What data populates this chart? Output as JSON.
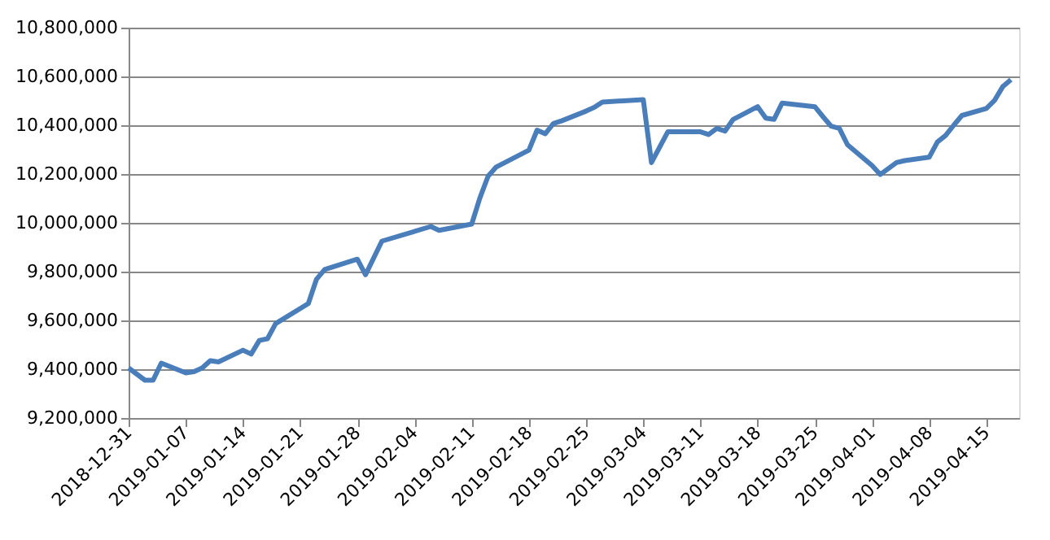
{
  "chart_data": {
    "type": "line",
    "x": [
      "2018-12-31",
      "2019-01-02",
      "2019-01-03",
      "2019-01-04",
      "2019-01-07",
      "2019-01-08",
      "2019-01-09",
      "2019-01-10",
      "2019-01-11",
      "2019-01-14",
      "2019-01-15",
      "2019-01-16",
      "2019-01-17",
      "2019-01-18",
      "2019-01-22",
      "2019-01-23",
      "2019-01-24",
      "2019-01-28",
      "2019-01-29",
      "2019-01-31",
      "2019-02-06",
      "2019-02-07",
      "2019-02-11",
      "2019-02-12",
      "2019-02-13",
      "2019-02-14",
      "2019-02-18",
      "2019-02-19",
      "2019-02-20",
      "2019-02-21",
      "2019-02-22",
      "2019-02-25",
      "2019-02-26",
      "2019-02-27",
      "2019-03-04",
      "2019-03-05",
      "2019-03-06",
      "2019-03-07",
      "2019-03-08",
      "2019-03-11",
      "2019-03-12",
      "2019-03-13",
      "2019-03-14",
      "2019-03-15",
      "2019-03-18",
      "2019-03-19",
      "2019-03-20",
      "2019-03-21",
      "2019-03-25",
      "2019-03-26",
      "2019-03-27",
      "2019-03-28",
      "2019-03-29",
      "2019-04-01",
      "2019-04-02",
      "2019-04-04",
      "2019-04-05",
      "2019-04-08",
      "2019-04-09",
      "2019-04-10",
      "2019-04-11",
      "2019-04-12",
      "2019-04-15",
      "2019-04-16",
      "2019-04-17",
      "2019-04-18"
    ],
    "series": [
      {
        "color": "#4a7ebb",
        "values": [
          9405000,
          9355000,
          9355000,
          9425000,
          9385000,
          9390000,
          9405000,
          9435000,
          9430000,
          9478000,
          9462000,
          9518000,
          9525000,
          9587000,
          9669000,
          9769000,
          9809000,
          9851000,
          9787000,
          9925000,
          9985000,
          9969000,
          9995000,
          10102000,
          10191000,
          10229000,
          10298000,
          10380000,
          10365000,
          10407000,
          10418000,
          10458000,
          10473000,
          10495000,
          10505000,
          10247000,
          10310000,
          10373000,
          10373000,
          10373000,
          10362000,
          10387000,
          10376000,
          10424000,
          10476000,
          10429000,
          10424000,
          10491000,
          10476000,
          10435000,
          10396000,
          10387000,
          10320000,
          10235000,
          10198000,
          10247000,
          10255000,
          10269000,
          10331000,
          10358000,
          10400000,
          10440000,
          10469000,
          10502000,
          10558000,
          10587000
        ]
      }
    ],
    "xlim": [
      "2018-12-31",
      "2019-04-19"
    ],
    "xticks": [
      "2018-12-31",
      "2019-01-07",
      "2019-01-14",
      "2019-01-21",
      "2019-01-28",
      "2019-02-04",
      "2019-02-11",
      "2019-02-18",
      "2019-02-25",
      "2019-03-04",
      "2019-03-11",
      "2019-03-18",
      "2019-03-25",
      "2019-04-01",
      "2019-04-08",
      "2019-04-15"
    ],
    "ylim": [
      9200000,
      10800000
    ],
    "yticks": [
      {
        "value": 9200000,
        "label": "9,200,000"
      },
      {
        "value": 9400000,
        "label": "9,400,000"
      },
      {
        "value": 9600000,
        "label": "9,600,000"
      },
      {
        "value": 9800000,
        "label": "9,800,000"
      },
      {
        "value": 10000000,
        "label": "10,000,000"
      },
      {
        "value": 10200000,
        "label": "10,200,000"
      },
      {
        "value": 10400000,
        "label": "10,400,000"
      },
      {
        "value": 10600000,
        "label": "10,600,000"
      },
      {
        "value": 10800000,
        "label": "10,800,000"
      }
    ],
    "grid": "y",
    "marker": "none",
    "line_style": "solid"
  }
}
